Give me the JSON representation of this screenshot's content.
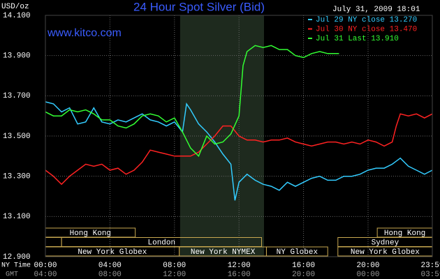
{
  "chart_data": {
    "type": "line",
    "title": "24 Hour Spot Silver (Bid)",
    "watermark": "www.kitco.com",
    "y_label": "USD/oz",
    "timestamp": "July 31, 2009 18:01",
    "x_label": "NY Time",
    "x2_label": "GMT",
    "xlim": [
      0,
      23.983
    ],
    "ylim": [
      12.9,
      14.1
    ],
    "xticks": [
      {
        "value": 0,
        "label": "00:00"
      },
      {
        "value": 4,
        "label": "04:00"
      },
      {
        "value": 8,
        "label": "08:00"
      },
      {
        "value": 12,
        "label": "12:00"
      },
      {
        "value": 16,
        "label": "16:00"
      },
      {
        "value": 20,
        "label": "20:00"
      },
      {
        "value": 23.983,
        "label": "23:59"
      }
    ],
    "x2ticks": [
      "04:00",
      "08:00",
      "12:00",
      "16:00",
      "20:00",
      "00:00",
      "03:59"
    ],
    "yticks": [
      {
        "value": 12.9,
        "label": "12.900"
      },
      {
        "value": 13.1,
        "label": "13.100"
      },
      {
        "value": 13.3,
        "label": "13.300"
      },
      {
        "value": 13.5,
        "label": "13.500"
      },
      {
        "value": 13.7,
        "label": "13.700"
      },
      {
        "value": 13.9,
        "label": "13.900"
      },
      {
        "value": 14.1,
        "label": "14.100"
      }
    ],
    "grid": true,
    "highlight": [
      8.35,
      13.55
    ],
    "session_rows": [
      [
        {
          "label": "Hong Kong",
          "start": 0,
          "end": 5.57
        },
        {
          "label": "Hong Kong",
          "start": 20.57,
          "end": 23.983
        }
      ],
      [
        {
          "label": null,
          "start": 0,
          "end": 1
        },
        {
          "label": "London",
          "start": 1,
          "end": 13.4
        },
        {
          "label": "Sydney",
          "start": 18.13,
          "end": 23.983
        }
      ],
      [
        {
          "label": "New York Globex",
          "start": 0,
          "end": 8.3
        },
        {
          "label": "New York NYMEX",
          "start": 8.3,
          "end": 13.7
        },
        {
          "label": "NY Globex",
          "start": 13.7,
          "end": 17.5
        },
        {
          "label": "New York Globex",
          "start": 18.13,
          "end": 23.983
        }
      ]
    ],
    "series": [
      {
        "name": "Jul 29 NY close 13.270",
        "color": "#33ccff",
        "x": [
          0,
          0.5,
          1,
          1.5,
          2,
          2.5,
          3,
          3.5,
          4,
          4.5,
          5,
          5.5,
          6,
          6.5,
          7,
          7.5,
          8,
          8.5,
          8.75,
          9,
          9.5,
          10,
          10.5,
          11,
          11.5,
          11.75,
          12,
          12.5,
          13,
          13.5,
          14,
          14.5,
          15,
          15.5,
          16,
          16.5,
          17,
          17.5,
          18,
          18.5,
          19,
          19.5,
          20,
          20.5,
          21,
          21.5,
          22,
          22.5,
          23,
          23.5,
          23.983
        ],
        "values": [
          13.67,
          13.66,
          13.62,
          13.64,
          13.56,
          13.57,
          13.64,
          13.57,
          13.56,
          13.58,
          13.57,
          13.59,
          13.61,
          13.58,
          13.57,
          13.55,
          13.57,
          13.52,
          13.66,
          13.63,
          13.56,
          13.52,
          13.47,
          13.41,
          13.36,
          13.18,
          13.27,
          13.31,
          13.28,
          13.26,
          13.25,
          13.23,
          13.27,
          13.25,
          13.27,
          13.29,
          13.3,
          13.28,
          13.28,
          13.3,
          13.3,
          13.31,
          13.33,
          13.34,
          13.34,
          13.36,
          13.39,
          13.35,
          13.33,
          13.31,
          13.33
        ]
      },
      {
        "name": "Jul 30 NY close 13.470",
        "color": "#ff2222",
        "x": [
          0,
          0.5,
          1,
          1.5,
          2,
          2.5,
          3,
          3.5,
          4,
          4.5,
          5,
          5.5,
          6,
          6.5,
          7,
          7.5,
          8,
          8.5,
          9,
          9.5,
          10,
          10.5,
          11,
          11.5,
          12,
          12.5,
          13,
          13.5,
          14,
          14.5,
          15,
          15.5,
          16,
          16.5,
          17,
          17.5,
          18,
          18.5,
          19,
          19.5,
          20,
          20.5,
          21,
          21.5,
          21.75,
          22,
          22.5,
          23,
          23.5,
          23.983
        ],
        "values": [
          13.33,
          13.3,
          13.26,
          13.3,
          13.33,
          13.36,
          13.35,
          13.36,
          13.33,
          13.34,
          13.31,
          13.33,
          13.37,
          13.43,
          13.42,
          13.41,
          13.4,
          13.4,
          13.4,
          13.42,
          13.46,
          13.5,
          13.55,
          13.55,
          13.5,
          13.48,
          13.48,
          13.47,
          13.48,
          13.48,
          13.49,
          13.47,
          13.46,
          13.45,
          13.46,
          13.47,
          13.47,
          13.46,
          13.47,
          13.46,
          13.48,
          13.47,
          13.45,
          13.47,
          13.55,
          13.61,
          13.6,
          13.61,
          13.59,
          13.61
        ]
      },
      {
        "name": "Jul 31 Last 13.910",
        "color": "#33ff33",
        "x": [
          0,
          0.5,
          1,
          1.5,
          2,
          2.5,
          3,
          3.5,
          4,
          4.5,
          5,
          5.5,
          6,
          6.5,
          7,
          7.5,
          8,
          8.5,
          9,
          9.5,
          10,
          10.5,
          11,
          11.5,
          12,
          12.25,
          12.5,
          13,
          13.5,
          14,
          14.5,
          15,
          15.5,
          16,
          16.5,
          17,
          17.5,
          18,
          18.2
        ],
        "values": [
          13.62,
          13.6,
          13.6,
          13.63,
          13.62,
          13.63,
          13.61,
          13.58,
          13.58,
          13.55,
          13.54,
          13.56,
          13.6,
          13.61,
          13.6,
          13.57,
          13.59,
          13.52,
          13.44,
          13.4,
          13.5,
          13.46,
          13.47,
          13.51,
          13.6,
          13.85,
          13.92,
          13.95,
          13.94,
          13.95,
          13.93,
          13.93,
          13.9,
          13.89,
          13.91,
          13.92,
          13.91,
          13.91,
          13.91
        ]
      }
    ]
  }
}
